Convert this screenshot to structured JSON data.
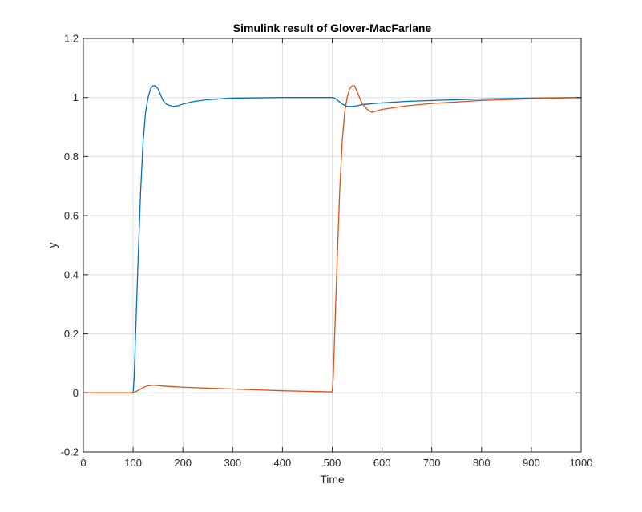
{
  "chart_data": {
    "type": "line",
    "title": "Simulink result of Glover-MacFarlane",
    "xlabel": "Time",
    "ylabel": "y",
    "xlim": [
      0,
      1000
    ],
    "ylim": [
      -0.2,
      1.2
    ],
    "xticks": [
      0,
      100,
      200,
      300,
      400,
      500,
      600,
      700,
      800,
      900,
      1000
    ],
    "yticks": [
      -0.2,
      0,
      0.2,
      0.4,
      0.6,
      0.8,
      1,
      1.2
    ],
    "xtick_labels": [
      "0",
      "100",
      "200",
      "300",
      "400",
      "500",
      "600",
      "700",
      "800",
      "900",
      "1000"
    ],
    "ytick_labels": [
      "-0.2",
      "0",
      "0.2",
      "0.4",
      "0.6",
      "0.8",
      "1",
      "1.2"
    ],
    "grid": true,
    "series": [
      {
        "color": "#0072BD",
        "x": [
          0,
          100,
          102,
          106,
          110,
          115,
          120,
          125,
          130,
          135,
          140,
          145,
          150,
          155,
          160,
          165,
          170,
          180,
          190,
          200,
          220,
          250,
          300,
          350,
          400,
          450,
          500,
          505,
          510,
          520,
          530,
          540,
          550,
          560,
          580,
          600,
          650,
          700,
          800,
          900,
          1000
        ],
        "y": [
          0,
          0,
          0.05,
          0.25,
          0.45,
          0.68,
          0.85,
          0.95,
          1.0,
          1.03,
          1.04,
          1.04,
          1.03,
          1.01,
          0.99,
          0.98,
          0.975,
          0.97,
          0.972,
          0.978,
          0.986,
          0.993,
          0.998,
          0.999,
          1.0,
          1.0,
          1.0,
          0.998,
          0.992,
          0.978,
          0.97,
          0.97,
          0.972,
          0.976,
          0.979,
          0.982,
          0.987,
          0.99,
          0.995,
          0.998,
          1.0
        ]
      },
      {
        "color": "#D95319",
        "x": [
          0,
          100,
          110,
          120,
          130,
          140,
          150,
          160,
          180,
          200,
          250,
          300,
          350,
          400,
          450,
          480,
          500,
          502,
          506,
          510,
          515,
          520,
          525,
          530,
          535,
          540,
          545,
          550,
          555,
          560,
          570,
          580,
          590,
          600,
          650,
          700,
          800,
          900,
          1000
        ],
        "y": [
          0,
          0,
          0.008,
          0.018,
          0.024,
          0.026,
          0.025,
          0.023,
          0.021,
          0.019,
          0.016,
          0.013,
          0.01,
          0.007,
          0.005,
          0.004,
          0.003,
          0.05,
          0.25,
          0.45,
          0.68,
          0.85,
          0.95,
          1.0,
          1.03,
          1.04,
          1.04,
          1.02,
          1.0,
          0.98,
          0.96,
          0.95,
          0.955,
          0.96,
          0.972,
          0.98,
          0.99,
          0.996,
          1.0
        ]
      }
    ]
  }
}
